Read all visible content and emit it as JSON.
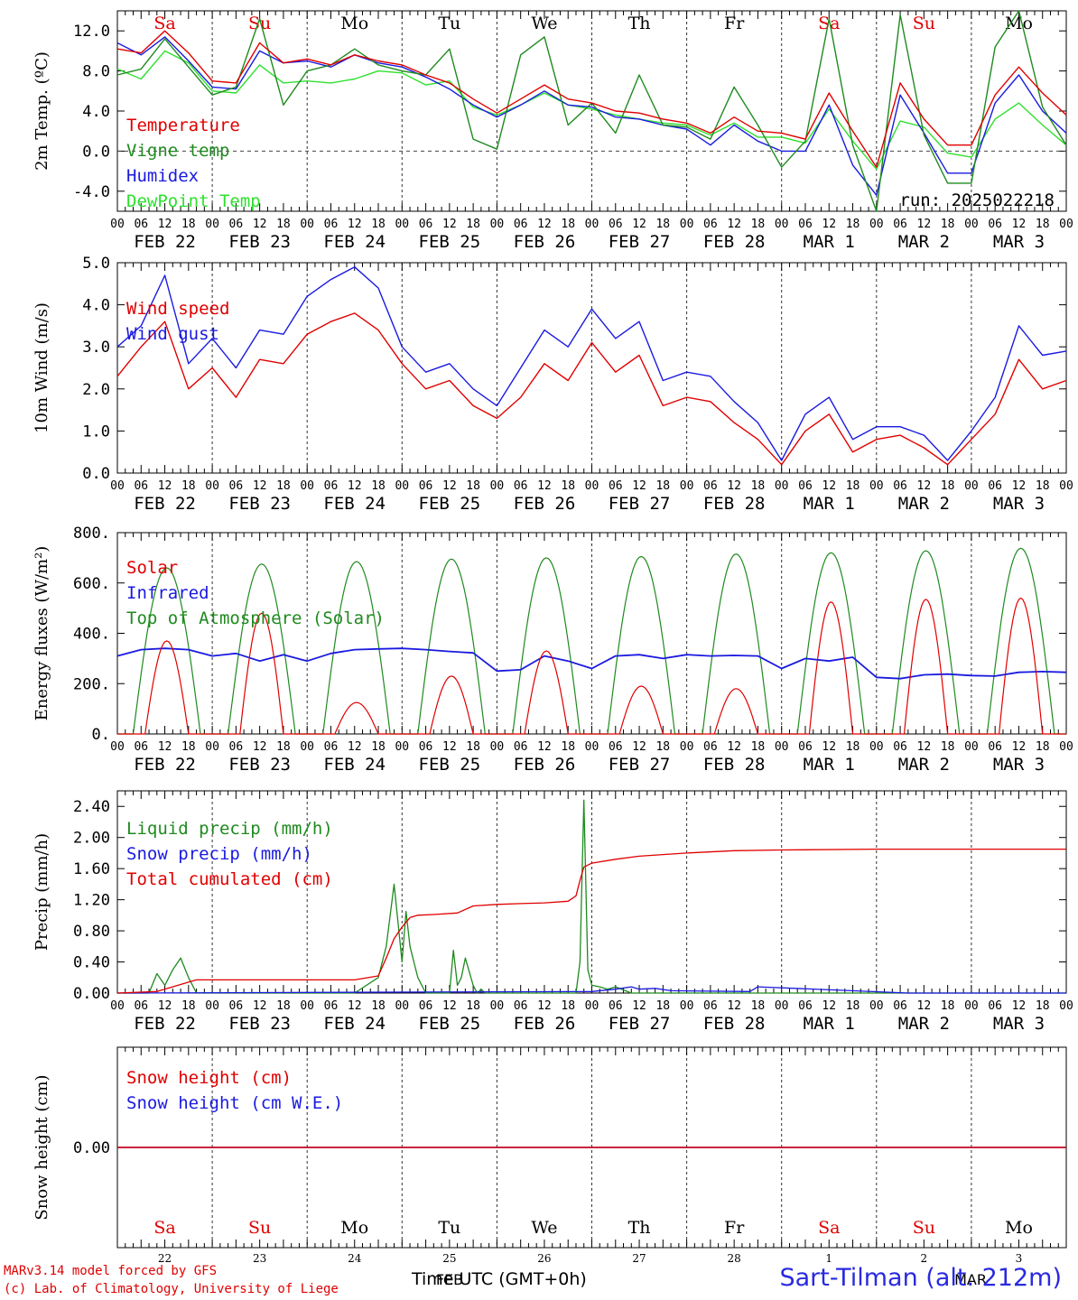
{
  "days": [
    "Sa",
    "Su",
    "Mo",
    "Tu",
    "We",
    "Th",
    "Fr",
    "Sa",
    "Su",
    "Mo"
  ],
  "day_colors": [
    "#e00000",
    "#e00000",
    "#000000",
    "#000000",
    "#000000",
    "#000000",
    "#000000",
    "#e00000",
    "#e00000",
    "#000000"
  ],
  "date_labels": [
    "FEB 22",
    "FEB 23",
    "FEB 24",
    "FEB 25",
    "FEB 26",
    "FEB 27",
    "FEB 28",
    "MAR  1",
    "MAR  2",
    "MAR  3"
  ],
  "bottom_day_numbers": [
    "22",
    "23",
    "24",
    "25",
    "26",
    "27",
    "28",
    "1",
    "2",
    "3"
  ],
  "hour_labels": [
    "00",
    "06",
    "12",
    "18"
  ],
  "last_hour_label": "00",
  "run_label": "run: 2025022218",
  "footer": {
    "model": "MARv3.14 model forced by GFS",
    "credit": "(c) Lab. of Climatology, University of Liege",
    "site": "Sart-Tilman (alt. 212m)",
    "xaxis_title": "Time UTC (GMT+0h)",
    "overlay_feb": "FEB",
    "overlay_mar": "MAR"
  },
  "chart_data": [
    {
      "type": "line",
      "ylabel": "2m Temp. (ºC)",
      "ylim": [
        -6,
        14
      ],
      "yticks": [
        "12.0",
        "8.0",
        "4.0",
        "0.0",
        "-4.0"
      ],
      "ytick_values": [
        12,
        8,
        4,
        0,
        -4
      ],
      "zero_dashed": true,
      "x_unit": "hours since Feb 22 00 UTC",
      "series": [
        {
          "name": "Temperature",
          "color": "#e00000",
          "x": [
            0,
            6,
            12,
            18,
            24,
            30,
            36,
            42,
            48,
            54,
            60,
            66,
            72,
            78,
            84,
            90,
            96,
            102,
            108,
            114,
            120,
            126,
            132,
            138,
            144,
            150,
            156,
            162,
            168,
            174,
            180,
            186,
            192,
            198,
            204,
            210,
            216,
            222,
            228,
            234,
            240
          ],
          "y": [
            10.2,
            9.8,
            12.0,
            9.8,
            7.0,
            6.8,
            10.8,
            8.8,
            9.2,
            8.6,
            9.6,
            9.0,
            8.6,
            7.6,
            6.8,
            5.2,
            3.8,
            5.2,
            6.6,
            5.2,
            4.8,
            4.0,
            3.8,
            3.2,
            2.8,
            1.8,
            3.4,
            2.0,
            1.8,
            1.2,
            5.8,
            2.0,
            -1.6,
            6.8,
            3.2,
            0.6,
            0.6,
            5.6,
            8.4,
            5.8,
            3.6
          ]
        },
        {
          "name": "Vigne temp",
          "color": "#1f8a1f",
          "x": [
            0,
            6,
            12,
            18,
            24,
            30,
            36,
            42,
            48,
            54,
            60,
            66,
            72,
            78,
            84,
            90,
            96,
            102,
            108,
            114,
            120,
            126,
            132,
            138,
            144,
            150,
            156,
            162,
            168,
            174,
            180,
            186,
            192,
            198,
            204,
            210,
            216,
            222,
            228,
            234,
            240
          ],
          "y": [
            7.6,
            8.2,
            11.2,
            8.4,
            5.6,
            6.4,
            13.2,
            4.6,
            8.0,
            8.6,
            10.2,
            8.6,
            8.0,
            7.6,
            10.2,
            1.2,
            0.2,
            9.6,
            11.4,
            2.6,
            4.8,
            1.8,
            7.6,
            2.6,
            2.4,
            1.2,
            6.4,
            2.6,
            -1.6,
            1.0,
            13.2,
            0.6,
            -6.0,
            13.6,
            1.6,
            -3.2,
            -3.2,
            10.4,
            14.0,
            4.4,
            0.6
          ]
        },
        {
          "name": "Humidex",
          "color": "#1a1ae0",
          "x": [
            0,
            6,
            12,
            18,
            24,
            30,
            36,
            42,
            48,
            54,
            60,
            66,
            72,
            78,
            84,
            90,
            96,
            102,
            108,
            114,
            120,
            126,
            132,
            138,
            144,
            150,
            156,
            162,
            168,
            174,
            180,
            186,
            192,
            198,
            204,
            210,
            216,
            222,
            228,
            234,
            240
          ],
          "y": [
            10.8,
            9.6,
            11.4,
            9.0,
            6.4,
            6.2,
            10.0,
            8.8,
            9.0,
            8.4,
            9.6,
            8.8,
            8.4,
            7.4,
            6.2,
            4.6,
            3.4,
            4.6,
            6.0,
            4.6,
            4.4,
            3.4,
            3.2,
            2.6,
            2.2,
            0.6,
            2.6,
            1.0,
            0.0,
            0.0,
            4.6,
            -1.4,
            -4.4,
            5.6,
            1.8,
            -2.2,
            -2.2,
            4.8,
            7.6,
            4.0,
            1.8
          ]
        },
        {
          "name": "DewPoint Temp",
          "color": "#2ee02e",
          "x": [
            0,
            6,
            12,
            18,
            24,
            30,
            36,
            42,
            48,
            54,
            60,
            66,
            72,
            78,
            84,
            90,
            96,
            102,
            108,
            114,
            120,
            126,
            132,
            138,
            144,
            150,
            156,
            162,
            168,
            174,
            180,
            186,
            192,
            198,
            204,
            210,
            216,
            222,
            228,
            234,
            240
          ],
          "y": [
            8.2,
            7.2,
            10.0,
            8.8,
            6.0,
            5.8,
            8.6,
            6.8,
            7.0,
            6.8,
            7.2,
            8.0,
            7.8,
            6.6,
            7.0,
            4.4,
            3.6,
            4.6,
            5.8,
            4.6,
            4.2,
            3.6,
            3.2,
            2.8,
            2.6,
            1.6,
            2.8,
            1.4,
            1.4,
            0.8,
            4.2,
            1.0,
            -1.8,
            3.0,
            2.4,
            -0.2,
            -0.6,
            3.2,
            4.8,
            2.6,
            0.6
          ]
        }
      ]
    },
    {
      "type": "line",
      "ylabel": "10m Wind (m/s)",
      "ylim": [
        0,
        5
      ],
      "yticks": [
        "5.0",
        "4.0",
        "3.0",
        "2.0",
        "1.0",
        "0.0"
      ],
      "ytick_values": [
        5,
        4,
        3,
        2,
        1,
        0
      ],
      "x_unit": "hours since Feb 22 00 UTC",
      "series": [
        {
          "name": "Wind speed",
          "color": "#e00000",
          "x": [
            0,
            6,
            12,
            18,
            24,
            30,
            36,
            42,
            48,
            54,
            60,
            66,
            72,
            78,
            84,
            90,
            96,
            102,
            108,
            114,
            120,
            126,
            132,
            138,
            144,
            150,
            156,
            162,
            168,
            174,
            180,
            186,
            192,
            198,
            204,
            210,
            216,
            222,
            228,
            234,
            240
          ],
          "y": [
            2.3,
            3.0,
            3.6,
            2.0,
            2.5,
            1.8,
            2.7,
            2.6,
            3.3,
            3.6,
            3.8,
            3.4,
            2.6,
            2.0,
            2.2,
            1.6,
            1.3,
            1.8,
            2.6,
            2.2,
            3.1,
            2.4,
            2.8,
            1.6,
            1.8,
            1.7,
            1.2,
            0.8,
            0.2,
            1.0,
            1.4,
            0.5,
            0.8,
            0.9,
            0.6,
            0.2,
            0.8,
            1.4,
            2.7,
            2.0,
            2.2
          ]
        },
        {
          "name": "Wind gust",
          "color": "#1a1ae0",
          "x": [
            0,
            6,
            12,
            18,
            24,
            30,
            36,
            42,
            48,
            54,
            60,
            66,
            72,
            78,
            84,
            90,
            96,
            102,
            108,
            114,
            120,
            126,
            132,
            138,
            144,
            150,
            156,
            162,
            168,
            174,
            180,
            186,
            192,
            198,
            204,
            210,
            216,
            222,
            228,
            234,
            240
          ],
          "y": [
            3.0,
            3.5,
            4.7,
            2.6,
            3.2,
            2.5,
            3.4,
            3.3,
            4.2,
            4.6,
            4.9,
            4.4,
            3.0,
            2.4,
            2.6,
            2.0,
            1.6,
            2.5,
            3.4,
            3.0,
            3.9,
            3.2,
            3.6,
            2.2,
            2.4,
            2.3,
            1.7,
            1.2,
            0.3,
            1.4,
            1.8,
            0.8,
            1.1,
            1.1,
            0.9,
            0.3,
            1.0,
            1.8,
            3.5,
            2.8,
            2.9
          ]
        }
      ]
    },
    {
      "type": "line",
      "ylabel": "Energy fluxes (W/m²)",
      "ylim": [
        0,
        800
      ],
      "yticks": [
        "800.",
        "600.",
        "400.",
        "200.",
        "0."
      ],
      "ytick_values": [
        800,
        600,
        400,
        200,
        0
      ],
      "x_unit": "hours since Feb 22 00 UTC",
      "series": [
        {
          "name": "Solar",
          "color": "#e00000",
          "daily_peaks": [
            370,
            480,
            125,
            230,
            330,
            190,
            180,
            525,
            535,
            540
          ]
        },
        {
          "name": "Infrared",
          "color": "#1a1ae0",
          "x": [
            0,
            6,
            12,
            18,
            24,
            30,
            36,
            42,
            48,
            54,
            60,
            66,
            72,
            78,
            84,
            90,
            96,
            102,
            108,
            114,
            120,
            126,
            132,
            138,
            144,
            150,
            156,
            162,
            168,
            174,
            180,
            186,
            192,
            198,
            204,
            210,
            216,
            222,
            228,
            234,
            240
          ],
          "y": [
            310,
            335,
            340,
            335,
            310,
            320,
            290,
            315,
            290,
            320,
            335,
            338,
            340,
            335,
            328,
            322,
            250,
            255,
            310,
            290,
            260,
            310,
            315,
            300,
            315,
            310,
            312,
            310,
            260,
            300,
            290,
            305,
            225,
            220,
            235,
            238,
            232,
            230,
            245,
            248,
            245
          ]
        },
        {
          "name": "Top of Atmosphere (Solar)",
          "color": "#1f8a1f",
          "daily_peaks": [
            660,
            675,
            685,
            695,
            700,
            705,
            715,
            720,
            728,
            738
          ]
        }
      ]
    },
    {
      "type": "line",
      "ylabel": "Precip (mm/h)",
      "ylim": [
        0,
        2.6
      ],
      "yticks": [
        "2.40",
        "2.00",
        "1.60",
        "1.20",
        "0.80",
        "0.40",
        "0.00"
      ],
      "ytick_values": [
        2.4,
        2.0,
        1.6,
        1.2,
        0.8,
        0.4,
        0.0
      ],
      "x_unit": "hours since Feb 22 00 UTC",
      "series": [
        {
          "name": "Liquid precip (mm/h)",
          "color": "#1f8a1f",
          "x": [
            0,
            8,
            10,
            12,
            14,
            16,
            18,
            20,
            22,
            24,
            60,
            66,
            68,
            70,
            72,
            73,
            74,
            75,
            76,
            78,
            84,
            85,
            86,
            87,
            88,
            90,
            91,
            92,
            93,
            100,
            116,
            117,
            118,
            119,
            120,
            122,
            124,
            126,
            130,
            140,
            200,
            240
          ],
          "y": [
            0,
            0,
            0.25,
            0.1,
            0.3,
            0.45,
            0.2,
            0,
            0,
            0,
            0,
            0.2,
            0.6,
            1.4,
            0.4,
            1.05,
            0.6,
            0.4,
            0.2,
            0,
            0,
            0.55,
            0.1,
            0.2,
            0.45,
            0.1,
            0,
            0.05,
            0,
            0,
            0,
            0.4,
            2.48,
            0.3,
            0.1,
            0.08,
            0.05,
            0.08,
            0,
            0,
            0,
            0
          ]
        },
        {
          "name": "Snow precip (mm/h)",
          "color": "#1a1ae0",
          "x": [
            0,
            120,
            126,
            130,
            132,
            136,
            140,
            160,
            162,
            200,
            240
          ],
          "y": [
            0,
            0.02,
            0.05,
            0.08,
            0.05,
            0.06,
            0.03,
            0.02,
            0.08,
            0,
            0
          ]
        },
        {
          "name": "Total cumulated (cm)",
          "color": "#e00000",
          "x": [
            0,
            10,
            14,
            18,
            20,
            24,
            60,
            66,
            68,
            70,
            72,
            74,
            76,
            80,
            86,
            90,
            96,
            102,
            108,
            114,
            116,
            117,
            118,
            120,
            126,
            132,
            144,
            156,
            168,
            192,
            240
          ],
          "y": [
            0,
            0.02,
            0.08,
            0.14,
            0.17,
            0.17,
            0.17,
            0.22,
            0.45,
            0.7,
            0.85,
            0.97,
            1.0,
            1.01,
            1.03,
            1.12,
            1.14,
            1.15,
            1.16,
            1.18,
            1.25,
            1.45,
            1.62,
            1.67,
            1.72,
            1.76,
            1.8,
            1.83,
            1.84,
            1.85,
            1.85
          ]
        }
      ]
    },
    {
      "type": "line",
      "ylabel": "Snow height (cm)",
      "ylim": [
        -1,
        1
      ],
      "yticks": [
        "0.00"
      ],
      "ytick_values": [
        0
      ],
      "x_unit": "hours since Feb 22 00 UTC",
      "series": [
        {
          "name": "Snow height (cm)",
          "color": "#e00000",
          "x": [
            0,
            240
          ],
          "y": [
            0,
            0
          ]
        },
        {
          "name": "Snow height (cm W.E.)",
          "color": "#1a1ae0",
          "x": [
            0,
            240
          ],
          "y": [
            0,
            0
          ]
        }
      ]
    }
  ]
}
